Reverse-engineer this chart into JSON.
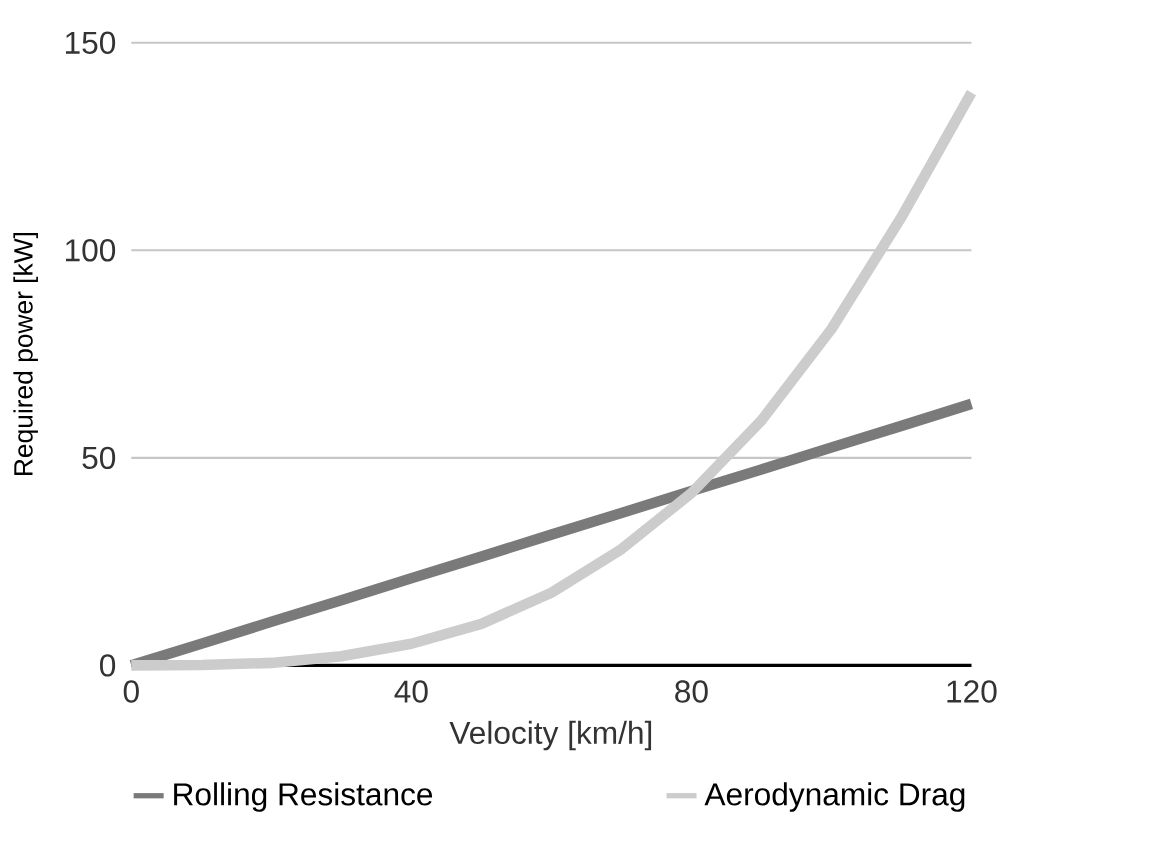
{
  "chart_data": {
    "type": "line",
    "xlabel": "Velocity [km/h]",
    "ylabel": "Required power [kW]",
    "x": [
      0,
      10,
      20,
      30,
      40,
      50,
      60,
      70,
      80,
      90,
      100,
      110,
      120
    ],
    "series": [
      {
        "name": "Rolling Resistance",
        "color": "#7a7a7a",
        "values": [
          0,
          5.2,
          10.5,
          15.7,
          21,
          26.2,
          31.5,
          36.7,
          42,
          47.2,
          52.5,
          57.7,
          63
        ]
      },
      {
        "name": "Aerodynamic Drag",
        "color": "#cccccc",
        "values": [
          0,
          0.1,
          0.6,
          2.2,
          5.2,
          10,
          17.5,
          28,
          41.5,
          59,
          81,
          108,
          138
        ]
      }
    ],
    "xlim": [
      0,
      120
    ],
    "ylim": [
      0,
      150
    ],
    "xticks": [
      0,
      40,
      80,
      120
    ],
    "yticks": [
      0,
      50,
      100,
      150
    ],
    "grid": "y",
    "legend": "bottom",
    "marker": "none",
    "line_style": "solid"
  }
}
